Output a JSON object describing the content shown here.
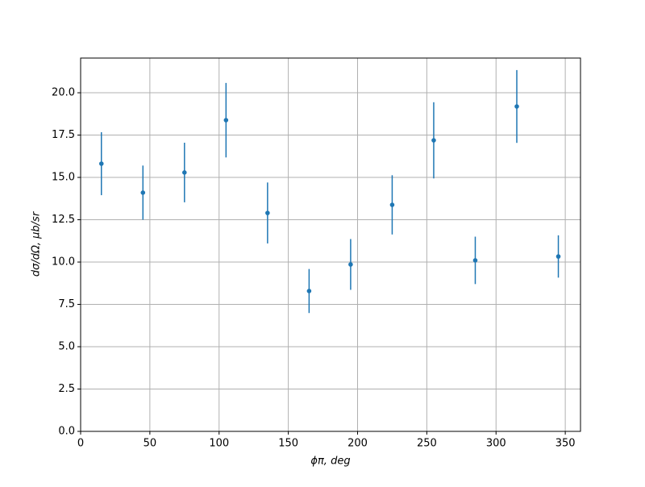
{
  "chart_data": {
    "type": "errorbar",
    "x_label": "ϕπ, deg",
    "y_label": "dσ/dΩ, μb/sr",
    "x": [
      15,
      45,
      75,
      105,
      135,
      165,
      195,
      225,
      255,
      285,
      315,
      345
    ],
    "values": [
      15.81,
      14.1,
      15.29,
      18.38,
      12.9,
      8.29,
      9.86,
      13.38,
      17.19,
      10.1,
      19.19,
      10.33
    ],
    "errors": [
      1.86,
      1.6,
      1.76,
      2.2,
      1.8,
      1.3,
      1.5,
      1.75,
      2.25,
      1.4,
      2.15,
      1.25
    ],
    "color": "#1f77b4",
    "xlim": [
      0,
      361
    ],
    "xticks": [
      0,
      50,
      100,
      150,
      200,
      250,
      300,
      350
    ],
    "ylim": [
      0,
      22.05
    ],
    "yticks": [
      {
        "value": 0,
        "label": "0.0"
      },
      {
        "value": 2.5,
        "label": "2.5"
      },
      {
        "value": 5,
        "label": "5.0"
      },
      {
        "value": 7.5,
        "label": "7.5"
      },
      {
        "value": 10,
        "label": "10.0"
      },
      {
        "value": 12.5,
        "label": "12.5"
      },
      {
        "value": 15,
        "label": "15.0"
      },
      {
        "value": 17.5,
        "label": "17.5"
      },
      {
        "value": 20,
        "label": "20.0"
      }
    ],
    "grid": true
  }
}
